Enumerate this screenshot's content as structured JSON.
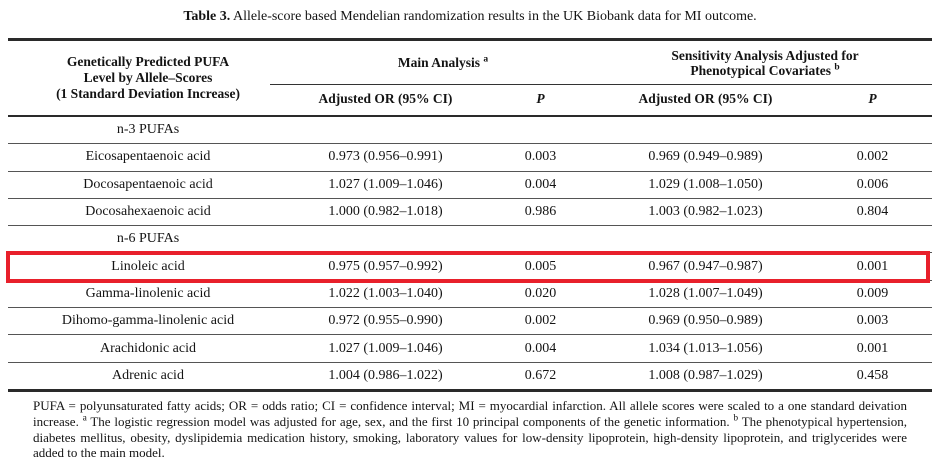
{
  "title": {
    "label": "Table 3.",
    "text": " Allele-score based Mendelian randomization results in the UK Biobank data for MI outcome."
  },
  "header": {
    "col1_lines": [
      "Genetically Predicted PUFA",
      "Level by Allele–Scores",
      "(1 Standard Deviation Increase)"
    ],
    "groups": [
      {
        "label": "Main Analysis",
        "sup": "a"
      },
      {
        "line1": "Sensitivity Analysis Adjusted for",
        "line2": "Phenotypical Covariates",
        "sup": "b"
      }
    ],
    "subcols": [
      "Adjusted OR (95% CI)",
      "P",
      "Adjusted OR (95% CI)",
      "P"
    ]
  },
  "rows": [
    {
      "type": "section",
      "name": "n-3 PUFAs",
      "or_main": "",
      "p_main": "",
      "or_sens": "",
      "p_sens": ""
    },
    {
      "type": "data",
      "name": "Eicosapentaenoic acid",
      "or_main": "0.973 (0.956–0.991)",
      "p_main": "0.003",
      "or_sens": "0.969 (0.949–0.989)",
      "p_sens": "0.002"
    },
    {
      "type": "data",
      "name": "Docosapentaenoic acid",
      "or_main": "1.027 (1.009–1.046)",
      "p_main": "0.004",
      "or_sens": "1.029 (1.008–1.050)",
      "p_sens": "0.006"
    },
    {
      "type": "data",
      "name": "Docosahexaenoic acid",
      "or_main": "1.000 (0.982–1.018)",
      "p_main": "0.986",
      "or_sens": "1.003 (0.982–1.023)",
      "p_sens": "0.804"
    },
    {
      "type": "section",
      "name": "n-6 PUFAs",
      "or_main": "",
      "p_main": "",
      "or_sens": "",
      "p_sens": ""
    },
    {
      "type": "data",
      "name": "Linoleic acid",
      "or_main": "0.975 (0.957–0.992)",
      "p_main": "0.005",
      "or_sens": "0.967 (0.947–0.987)",
      "p_sens": "0.001",
      "highlighted": true
    },
    {
      "type": "data",
      "name": "Gamma-linolenic acid",
      "or_main": "1.022 (1.003–1.040)",
      "p_main": "0.020",
      "or_sens": "1.028 (1.007–1.049)",
      "p_sens": "0.009"
    },
    {
      "type": "data",
      "name": "Dihomo-gamma-linolenic acid",
      "or_main": "0.972 (0.955–0.990)",
      "p_main": "0.002",
      "or_sens": "0.969 (0.950–0.989)",
      "p_sens": "0.003"
    },
    {
      "type": "data",
      "name": "Arachidonic acid",
      "or_main": "1.027 (1.009–1.046)",
      "p_main": "0.004",
      "or_sens": "1.034 (1.013–1.056)",
      "p_sens": "0.001"
    },
    {
      "type": "data",
      "name": "Adrenic acid",
      "or_main": "1.004 (0.986–1.022)",
      "p_main": "0.672",
      "or_sens": "1.008 (0.987–1.029)",
      "p_sens": "0.458"
    }
  ],
  "highlight": {
    "row_name": "Linoleic acid",
    "color": "#e8202b"
  },
  "footnote": {
    "seg1": "PUFA = polyunsaturated fatty acids; OR = odds ratio; CI = confidence interval; MI = myocardial infarction. All allele scores were scaled to a one standard deivation increase. ",
    "sup_a": "a",
    "seg2": " The logistic regression model was adjusted for age, sex, and the first 10 principal components of the genetic information. ",
    "sup_b": "b",
    "seg3": " The phenotypical hypertension, diabetes mellitus, obesity, dyslipidemia medication history, smoking, laboratory values for low-density lipoprotein, high-density lipoprotein, and triglycerides were added to the main model."
  }
}
